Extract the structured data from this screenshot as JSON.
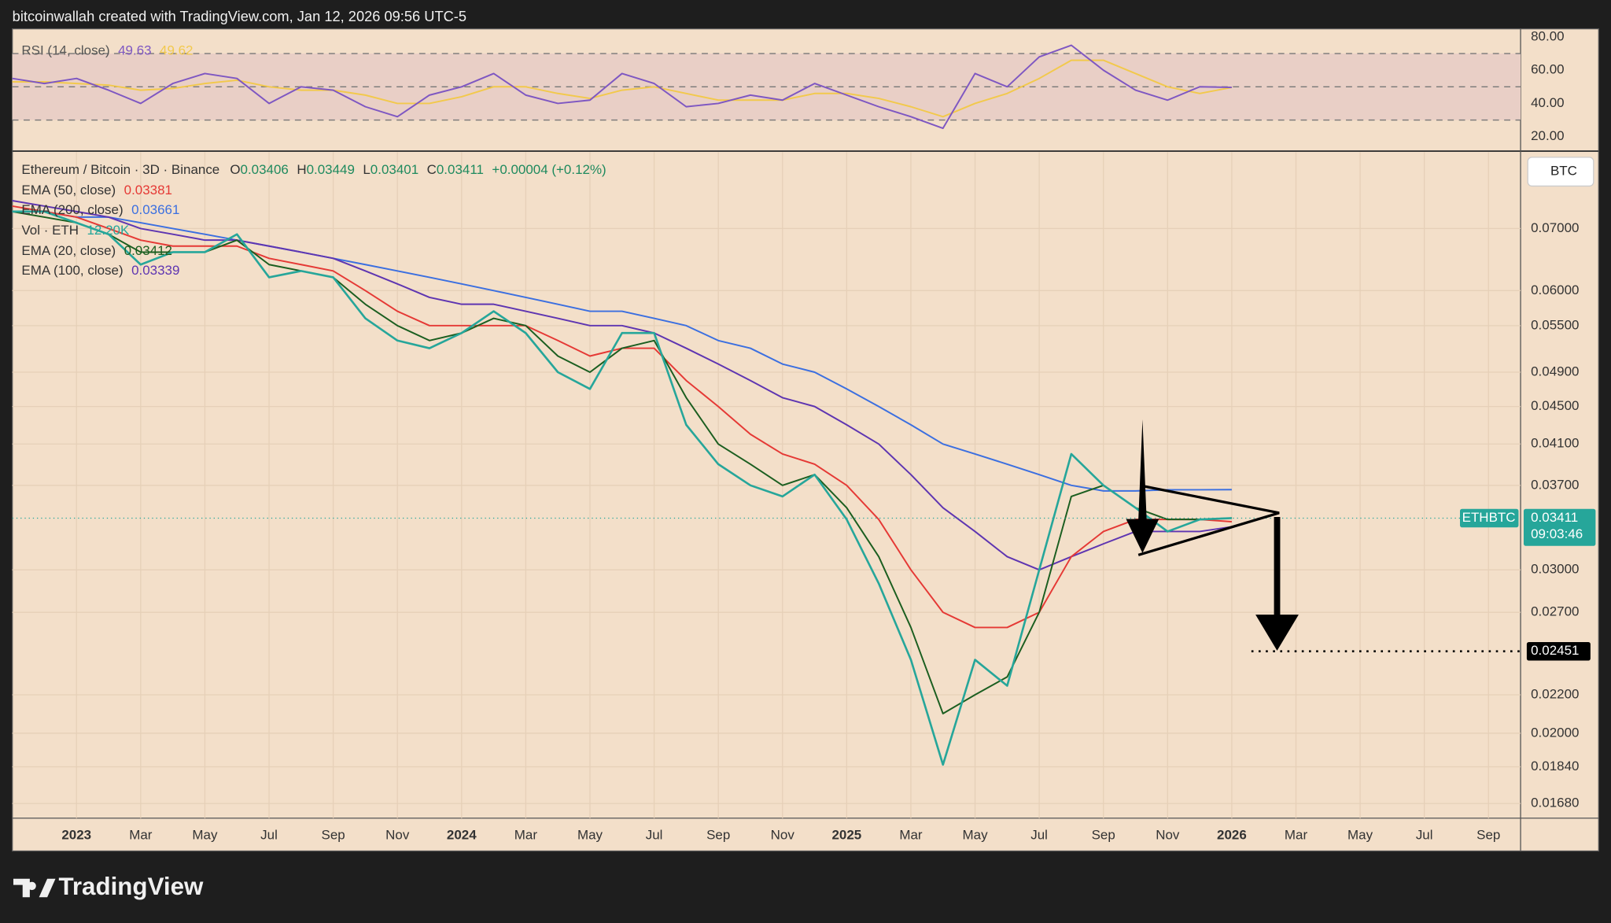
{
  "header": {
    "attribution": "bitcoinwallah created with TradingView.com, Jan 12, 2026 09:56 UTC-5",
    "watermark": "TradingView",
    "currency_button": "BTC"
  },
  "chart_data": [
    {
      "type": "line",
      "title": "Ethereum / Bitcoin · 3D · Binance",
      "scale": "log",
      "grid": true,
      "ohlc": [
        {
          "label": "O",
          "value": 0.03406
        },
        {
          "label": "H",
          "value": 0.03449
        },
        {
          "label": "L",
          "value": 0.03401
        },
        {
          "label": "C",
          "value": 0.03411
        }
      ],
      "change": "+0.00004 (+0.12%)",
      "x": [
        "2022-11",
        "2022-12",
        "2023-01",
        "2023-02",
        "2023-03",
        "2023-04",
        "2023-05",
        "2023-06",
        "2023-07",
        "2023-08",
        "2023-09",
        "2023-10",
        "2023-11",
        "2023-12",
        "2024-01",
        "2024-02",
        "2024-03",
        "2024-04",
        "2024-05",
        "2024-06",
        "2024-07",
        "2024-08",
        "2024-09",
        "2024-10",
        "2024-11",
        "2024-12",
        "2025-01",
        "2025-02",
        "2025-03",
        "2025-04",
        "2025-05",
        "2025-06",
        "2025-07",
        "2025-08",
        "2025-09",
        "2025-10",
        "2025-11",
        "2025-12",
        "2026-01"
      ],
      "series": [
        {
          "name": "ETHBTC",
          "color": "#26a69a",
          "values": [
            0.073,
            0.073,
            0.071,
            0.069,
            0.064,
            0.066,
            0.066,
            0.069,
            0.062,
            0.063,
            0.062,
            0.056,
            0.053,
            0.052,
            0.054,
            0.057,
            0.054,
            0.049,
            0.047,
            0.054,
            0.054,
            0.043,
            0.039,
            0.037,
            0.036,
            0.038,
            0.034,
            0.029,
            0.024,
            0.0185,
            0.024,
            0.0225,
            0.03,
            0.04,
            0.037,
            0.035,
            0.033,
            0.034,
            0.03411
          ]
        },
        {
          "name": "EMA (20, close)",
          "color": "#1b5e20",
          "values": [
            0.073,
            0.072,
            0.071,
            0.069,
            0.066,
            0.066,
            0.066,
            0.068,
            0.064,
            0.063,
            0.062,
            0.058,
            0.055,
            0.053,
            0.054,
            0.056,
            0.055,
            0.051,
            0.049,
            0.052,
            0.053,
            0.046,
            0.041,
            0.039,
            0.037,
            0.038,
            0.035,
            0.031,
            0.026,
            0.021,
            0.022,
            0.023,
            0.027,
            0.036,
            0.037,
            0.035,
            0.034,
            0.034,
            0.03412
          ]
        },
        {
          "name": "EMA (50, close)",
          "color": "#e53935",
          "values": [
            0.074,
            0.073,
            0.072,
            0.07,
            0.068,
            0.067,
            0.067,
            0.067,
            0.065,
            0.064,
            0.063,
            0.06,
            0.057,
            0.055,
            0.055,
            0.055,
            0.055,
            0.053,
            0.051,
            0.052,
            0.052,
            0.048,
            0.045,
            0.042,
            0.04,
            0.039,
            0.037,
            0.034,
            0.03,
            0.027,
            0.026,
            0.026,
            0.027,
            0.031,
            0.033,
            0.034,
            0.034,
            0.034,
            0.03381
          ]
        },
        {
          "name": "EMA (100, close)",
          "color": "#5e35b1",
          "values": [
            0.075,
            0.074,
            0.073,
            0.072,
            0.07,
            0.069,
            0.068,
            0.068,
            0.067,
            0.066,
            0.065,
            0.063,
            0.061,
            0.059,
            0.058,
            0.058,
            0.057,
            0.056,
            0.055,
            0.055,
            0.054,
            0.052,
            0.05,
            0.048,
            0.046,
            0.045,
            0.043,
            0.041,
            0.038,
            0.035,
            0.033,
            0.031,
            0.03,
            0.031,
            0.032,
            0.033,
            0.033,
            0.033,
            0.03339
          ]
        },
        {
          "name": "EMA (200, close)",
          "color": "#3b6fe0",
          "values": [
            0.073,
            0.073,
            0.072,
            0.072,
            0.071,
            0.07,
            0.069,
            0.068,
            0.067,
            0.066,
            0.065,
            0.064,
            0.063,
            0.062,
            0.061,
            0.06,
            0.059,
            0.058,
            0.057,
            0.057,
            0.056,
            0.055,
            0.053,
            0.052,
            0.05,
            0.049,
            0.047,
            0.045,
            0.043,
            0.041,
            0.04,
            0.039,
            0.038,
            0.037,
            0.0365,
            0.0365,
            0.0366,
            0.0366,
            0.03661
          ]
        }
      ],
      "volume": {
        "name": "Vol · ETH",
        "value": 12200,
        "value_label": "12.20K",
        "color": "#26a69a"
      },
      "xlim": [
        "2022-11",
        "2026-10"
      ],
      "xticks": [
        {
          "value": "2023-01",
          "label": "2023"
        },
        {
          "value": "2023-03",
          "label": "Mar"
        },
        {
          "value": "2023-05",
          "label": "May"
        },
        {
          "value": "2023-07",
          "label": "Jul"
        },
        {
          "value": "2023-09",
          "label": "Sep"
        },
        {
          "value": "2023-11",
          "label": "Nov"
        },
        {
          "value": "2024-01",
          "label": "2024"
        },
        {
          "value": "2024-03",
          "label": "Mar"
        },
        {
          "value": "2024-05",
          "label": "May"
        },
        {
          "value": "2024-07",
          "label": "Jul"
        },
        {
          "value": "2024-09",
          "label": "Sep"
        },
        {
          "value": "2024-11",
          "label": "Nov"
        },
        {
          "value": "2025-01",
          "label": "2025"
        },
        {
          "value": "2025-03",
          "label": "Mar"
        },
        {
          "value": "2025-05",
          "label": "May"
        },
        {
          "value": "2025-07",
          "label": "Jul"
        },
        {
          "value": "2025-09",
          "label": "Sep"
        },
        {
          "value": "2025-11",
          "label": "Nov"
        },
        {
          "value": "2026-01",
          "label": "2026"
        },
        {
          "value": "2026-03",
          "label": "Mar"
        },
        {
          "value": "2026-05",
          "label": "May"
        },
        {
          "value": "2026-07",
          "label": "Jul"
        },
        {
          "value": "2026-09",
          "label": "Sep"
        }
      ],
      "ylim": [
        0.0162,
        0.0846
      ],
      "yticks": [
        {
          "value": 0.07,
          "label": "0.07000"
        },
        {
          "value": 0.06,
          "label": "0.06000"
        },
        {
          "value": 0.055,
          "label": "0.05500"
        },
        {
          "value": 0.049,
          "label": "0.04900"
        },
        {
          "value": 0.045,
          "label": "0.04500"
        },
        {
          "value": 0.041,
          "label": "0.04100"
        },
        {
          "value": 0.037,
          "label": "0.03700"
        },
        {
          "value": 0.03,
          "label": "0.03000"
        },
        {
          "value": 0.027,
          "label": "0.02700"
        },
        {
          "value": 0.022,
          "label": "0.02200"
        },
        {
          "value": 0.02,
          "label": "0.02000"
        },
        {
          "value": 0.0184,
          "label": "0.01840"
        },
        {
          "value": 0.0168,
          "label": "0.01680"
        }
      ],
      "countdown": "09:03:46",
      "target": 0.02451
    },
    {
      "type": "line",
      "title": "RSI (14, close)",
      "x": [
        "2022-11",
        "2022-12",
        "2023-01",
        "2023-02",
        "2023-03",
        "2023-04",
        "2023-05",
        "2023-06",
        "2023-07",
        "2023-08",
        "2023-09",
        "2023-10",
        "2023-11",
        "2023-12",
        "2024-01",
        "2024-02",
        "2024-03",
        "2024-04",
        "2024-05",
        "2024-06",
        "2024-07",
        "2024-08",
        "2024-09",
        "2024-10",
        "2024-11",
        "2024-12",
        "2025-01",
        "2025-02",
        "2025-03",
        "2025-04",
        "2025-05",
        "2025-06",
        "2025-07",
        "2025-08",
        "2025-09",
        "2025-10",
        "2025-11",
        "2025-12",
        "2026-01"
      ],
      "series": [
        {
          "color": "#7e57c2",
          "values": [
            55,
            52,
            55,
            48,
            40,
            52,
            58,
            55,
            40,
            50,
            48,
            38,
            32,
            45,
            50,
            58,
            45,
            40,
            42,
            58,
            52,
            38,
            40,
            45,
            42,
            52,
            45,
            38,
            32,
            25,
            58,
            50,
            68,
            75,
            60,
            48,
            42,
            50,
            49.63
          ]
        },
        {
          "color": "#f2c94c",
          "values": [
            53,
            53,
            52,
            51,
            48,
            49,
            52,
            54,
            50,
            48,
            48,
            45,
            40,
            40,
            44,
            50,
            50,
            46,
            43,
            48,
            50,
            46,
            42,
            42,
            42,
            46,
            46,
            43,
            38,
            32,
            40,
            46,
            55,
            66,
            66,
            58,
            50,
            46,
            49.62
          ]
        }
      ],
      "levels": [
        70,
        50,
        30
      ],
      "xlim": [
        "2022-11",
        "2026-10"
      ],
      "ylim": [
        11.3,
        84.9
      ],
      "yticks": [
        {
          "value": 80,
          "label": "80.00"
        },
        {
          "value": 60,
          "label": "60.00"
        },
        {
          "value": 40,
          "label": "40.00"
        },
        {
          "value": 20,
          "label": "20.00"
        }
      ]
    }
  ]
}
